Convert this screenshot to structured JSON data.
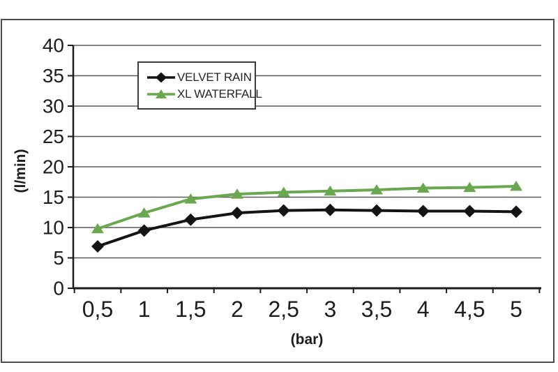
{
  "colors": {
    "background": "#ffffff",
    "frame_border": "#4c4c4c",
    "gridline": "#5a5a5a",
    "axis": "#1c1c1c",
    "tick_text": "#1d1d1d",
    "legend_border": "#3c3c3c"
  },
  "chart_data": {
    "type": "line",
    "title": "",
    "xlabel": "(bar)",
    "ylabel": "(l/min)",
    "x_labels": [
      "0,5",
      "1",
      "1,5",
      "2",
      "2,5",
      "3",
      "3,5",
      "4",
      "4,5",
      "5"
    ],
    "x_values": [
      0.5,
      1,
      1.5,
      2,
      2.5,
      3,
      3.5,
      4,
      4.5,
      5
    ],
    "y_ticks": [
      0,
      5,
      10,
      15,
      20,
      25,
      30,
      35,
      40
    ],
    "ylim": [
      0,
      40
    ],
    "grid": "horizontal",
    "legend_position": "inside-top-center",
    "series": [
      {
        "name": "VELVET RAIN",
        "color": "#141414",
        "marker": "diamond",
        "values": [
          6.9,
          9.5,
          11.3,
          12.4,
          12.8,
          12.9,
          12.8,
          12.7,
          12.7,
          12.6
        ]
      },
      {
        "name": "XL WATERFALL",
        "color": "#6aa84f",
        "marker": "triangle",
        "values": [
          9.8,
          12.4,
          14.7,
          15.5,
          15.8,
          16.0,
          16.2,
          16.5,
          16.6,
          16.8
        ]
      }
    ]
  }
}
